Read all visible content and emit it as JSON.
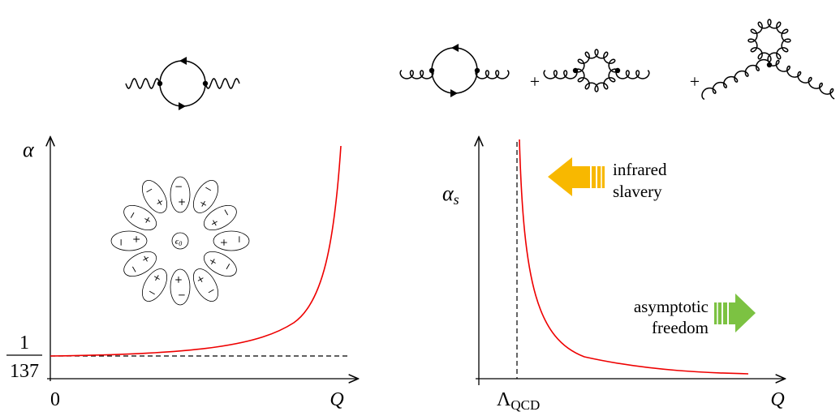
{
  "qed": {
    "coupling_symbol": "α",
    "fraction": {
      "numerator": "1",
      "denominator": "137"
    },
    "origin": "0",
    "x_label": "Q",
    "center_charge": {
      "symbol": "ϵ",
      "subscript": "0"
    },
    "dipoles": [
      {
        "plus": "+",
        "minus": "−"
      },
      {
        "plus": "+",
        "minus": "−"
      },
      {
        "plus": "+",
        "minus": "−"
      },
      {
        "plus": "+",
        "minus": "−"
      },
      {
        "plus": "+",
        "minus": "−"
      },
      {
        "plus": "+",
        "minus": "−"
      },
      {
        "plus": "+",
        "minus": "−"
      },
      {
        "plus": "+",
        "minus": "−"
      },
      {
        "plus": "+",
        "minus": "−"
      },
      {
        "plus": "+",
        "minus": "−"
      },
      {
        "plus": "+",
        "minus": "−"
      },
      {
        "plus": "+",
        "minus": "−"
      }
    ]
  },
  "qcd": {
    "coupling_symbol": "α",
    "coupling_subscript": "s",
    "scale_symbol": "Λ",
    "scale_subscript": "QCD",
    "x_label": "Q",
    "diagram_plus_signs": [
      "+",
      "+"
    ],
    "infrared_label": [
      "infrared",
      "slavery"
    ],
    "asymptotic_label": [
      "asymptotic",
      "freedom"
    ]
  }
}
